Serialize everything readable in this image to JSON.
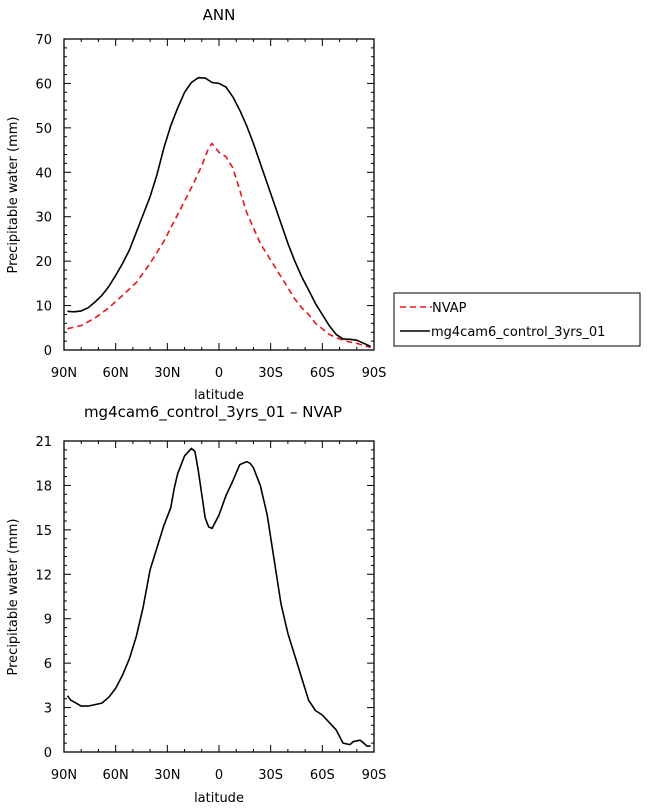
{
  "chart_data": [
    {
      "type": "line",
      "title": "ANN",
      "xlabel": "latitude",
      "ylabel": "Precipitable water (mm)",
      "xlim": [
        90,
        -90
      ],
      "ylim": [
        0,
        70
      ],
      "yticks": [
        0,
        10,
        20,
        30,
        40,
        50,
        60,
        70
      ],
      "xticks": [
        {
          "value": 90,
          "label": "90N"
        },
        {
          "value": 60,
          "label": "60N"
        },
        {
          "value": 30,
          "label": "30N"
        },
        {
          "value": 0,
          "label": "0"
        },
        {
          "value": -30,
          "label": "30S"
        },
        {
          "value": -60,
          "label": "60S"
        },
        {
          "value": -90,
          "label": "90S"
        }
      ],
      "legend": "right",
      "series": [
        {
          "name": "NVAP",
          "color": "#e8141b",
          "dash": "dashed",
          "x": [
            88,
            80,
            72,
            64,
            56,
            48,
            40,
            32,
            24,
            16,
            10,
            6,
            4,
            0,
            -4,
            -8,
            -12,
            -16,
            -20,
            -24,
            -28,
            -32,
            -36,
            -40,
            -44,
            -48,
            -52,
            -56,
            -60,
            -64,
            -68,
            -72,
            -76,
            -80,
            -84,
            -88
          ],
          "y": [
            4.8,
            5.5,
            7.2,
            9.5,
            12.3,
            15.2,
            19.5,
            24.5,
            30.5,
            36.5,
            41.5,
            45.5,
            46.5,
            44.5,
            43.5,
            41.0,
            36.0,
            31.0,
            27.5,
            24.0,
            21.5,
            19.0,
            16.5,
            14.0,
            11.5,
            9.5,
            8.0,
            6.0,
            4.8,
            3.5,
            2.8,
            2.2,
            1.8,
            1.5,
            1.0,
            0.6
          ]
        },
        {
          "name": "mg4cam6_control_3yrs_01",
          "color": "#000000",
          "dash": "solid",
          "x": [
            88,
            84,
            80,
            76,
            72,
            68,
            64,
            60,
            56,
            52,
            48,
            44,
            40,
            36,
            32,
            28,
            24,
            20,
            16,
            12,
            8,
            4,
            0,
            -4,
            -8,
            -12,
            -16,
            -20,
            -24,
            -28,
            -32,
            -36,
            -40,
            -44,
            -48,
            -52,
            -56,
            -60,
            -64,
            -68,
            -72,
            -76,
            -80,
            -84,
            -88
          ],
          "y": [
            8.7,
            8.6,
            8.8,
            9.5,
            10.8,
            12.3,
            14.3,
            16.8,
            19.5,
            22.5,
            26.5,
            30.5,
            34.5,
            39.5,
            45.5,
            50.5,
            54.5,
            58.0,
            60.2,
            61.3,
            61.2,
            60.2,
            60.0,
            59.2,
            57.0,
            54.0,
            50.5,
            46.5,
            42.0,
            37.5,
            33.0,
            28.5,
            24.0,
            20.0,
            16.5,
            13.5,
            10.5,
            8.0,
            5.5,
            3.5,
            2.5,
            2.4,
            2.2,
            1.5,
            0.8
          ]
        }
      ]
    },
    {
      "type": "line",
      "title": "mg4cam6_control_3yrs_01 – NVAP",
      "xlabel": "latitude",
      "ylabel": "Precipitable water (mm)",
      "xlim": [
        90,
        -90
      ],
      "ylim": [
        0,
        21
      ],
      "yticks": [
        0,
        3,
        6,
        9,
        12,
        15,
        18,
        21
      ],
      "xticks": [
        {
          "value": 90,
          "label": "90N"
        },
        {
          "value": 60,
          "label": "60N"
        },
        {
          "value": 30,
          "label": "30N"
        },
        {
          "value": 0,
          "label": "0"
        },
        {
          "value": -30,
          "label": "30S"
        },
        {
          "value": -60,
          "label": "60S"
        },
        {
          "value": -90,
          "label": "90S"
        }
      ],
      "series": [
        {
          "color": "#000000",
          "dash": "solid",
          "x": [
            88,
            86,
            80,
            76,
            72,
            68,
            64,
            60,
            56,
            52,
            48,
            44,
            40,
            36,
            32,
            28,
            26,
            24,
            20,
            16,
            14,
            12,
            8,
            6,
            4,
            0,
            -4,
            -8,
            -12,
            -16,
            -18,
            -20,
            -24,
            -28,
            -32,
            -36,
            -40,
            -44,
            -48,
            -52,
            -56,
            -60,
            -64,
            -68,
            -72,
            -76,
            -78,
            -82,
            -84,
            -86,
            -88
          ],
          "y": [
            3.8,
            3.5,
            3.1,
            3.1,
            3.2,
            3.3,
            3.7,
            4.3,
            5.2,
            6.3,
            7.8,
            9.8,
            12.3,
            13.8,
            15.3,
            16.5,
            17.8,
            18.8,
            20.0,
            20.5,
            20.3,
            19.0,
            15.8,
            15.2,
            15.1,
            16.0,
            17.3,
            18.3,
            19.4,
            19.6,
            19.5,
            19.2,
            18.0,
            16.0,
            13.0,
            10.0,
            8.0,
            6.5,
            5.0,
            3.5,
            2.8,
            2.5,
            2.0,
            1.5,
            0.6,
            0.5,
            0.7,
            0.8,
            0.6,
            0.4,
            0.4
          ]
        }
      ]
    }
  ]
}
